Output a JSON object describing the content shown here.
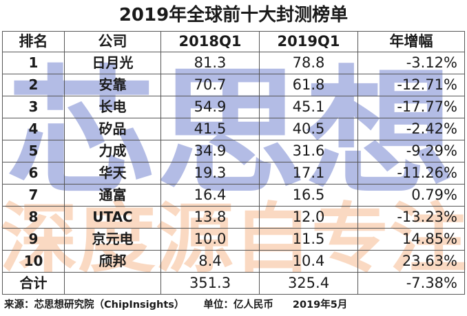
{
  "title": "2019年全球前十大封测榜单",
  "headers": [
    "排名",
    "公司",
    "2018Q1",
    "2019Q1",
    "年增幅"
  ],
  "rows": [
    {
      "rank": "1",
      "company": "日月光",
      "q1_2018": "81.3",
      "q1_2019": "78.8",
      "growth": "-3.12%"
    },
    {
      "rank": "2",
      "company": "安靠",
      "q1_2018": "70.7",
      "q1_2019": "61.8",
      "growth": "-12.71%"
    },
    {
      "rank": "3",
      "company": "长电",
      "q1_2018": "54.9",
      "q1_2019": "45.1",
      "growth": "-17.77%"
    },
    {
      "rank": "4",
      "company": "矽品",
      "q1_2018": "41.5",
      "q1_2019": "40.5",
      "growth": "-2.42%"
    },
    {
      "rank": "5",
      "company": "力成",
      "q1_2018": "34.9",
      "q1_2019": "31.6",
      "growth": "-9.29%"
    },
    {
      "rank": "6",
      "company": "华天",
      "q1_2018": "19.3",
      "q1_2019": "17.1",
      "growth": "-11.26%"
    },
    {
      "rank": "7",
      "company": "通富",
      "q1_2018": "16.4",
      "q1_2019": "16.5",
      "growth": "0.79%"
    },
    {
      "rank": "8",
      "company": "UTAC",
      "q1_2018": "13.8",
      "q1_2019": "12.0",
      "growth": "-13.23%"
    },
    {
      "rank": "9",
      "company": "京元电",
      "q1_2018": "10.0",
      "q1_2019": "11.5",
      "growth": "14.85%"
    },
    {
      "rank": "10",
      "company": "颀邦",
      "q1_2018": "8.4",
      "q1_2019": "10.4",
      "growth": "23.63%"
    }
  ],
  "total": {
    "label": "合计",
    "q1_2018": "351.3",
    "q1_2019": "325.4",
    "growth": "-7.38%"
  },
  "footer": {
    "source": "来源：芯思想研究院（ChipInsights）",
    "unit": "单位：亿人民币",
    "date": "2019年5月"
  },
  "watermarks": {
    "blue_text": "芯思想",
    "orange_text": "深度源自专注",
    "blue_color": "#9aa6dc",
    "orange_color": "#f7c09a"
  }
}
